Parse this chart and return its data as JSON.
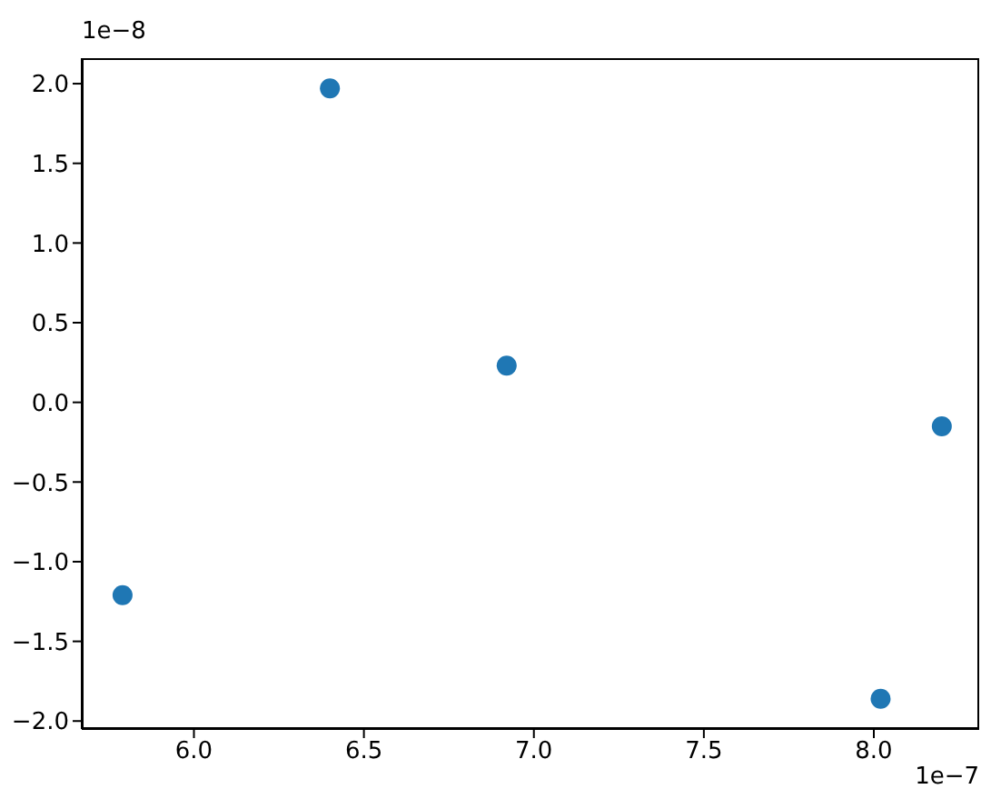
{
  "chart_data": {
    "type": "scatter",
    "x": [
      5.79,
      6.4,
      6.92,
      8.02,
      8.2
    ],
    "series": [
      {
        "color": "#1f77b4",
        "values": [
          -1.21,
          1.97,
          0.23,
          -1.86,
          -0.15
        ]
      }
    ],
    "xlim": [
      5.67,
      8.31
    ],
    "xticks": [
      {
        "value": 6,
        "label": "6.0"
      },
      {
        "value": 6.5,
        "label": "6.5"
      },
      {
        "value": 7,
        "label": "7.0"
      },
      {
        "value": 7.5,
        "label": "7.5"
      },
      {
        "value": 8,
        "label": "8.0"
      }
    ],
    "ylim": [
      -2.05,
      2.16
    ],
    "yticks": [
      {
        "value": -2,
        "label": "−2.0"
      },
      {
        "value": -1.5,
        "label": "−1.5"
      },
      {
        "value": -1,
        "label": "−1.0"
      },
      {
        "value": -0.5,
        "label": "−0.5"
      },
      {
        "value": 0,
        "label": "0.0"
      },
      {
        "value": 0.5,
        "label": "0.5"
      },
      {
        "value": 1,
        "label": "1.0"
      },
      {
        "value": 1.5,
        "label": "1.5"
      },
      {
        "value": 2,
        "label": "2.0"
      }
    ],
    "annotations": [
      "1e−8",
      "1e−7"
    ],
    "marker": "circle",
    "grid": false,
    "legend": false
  }
}
